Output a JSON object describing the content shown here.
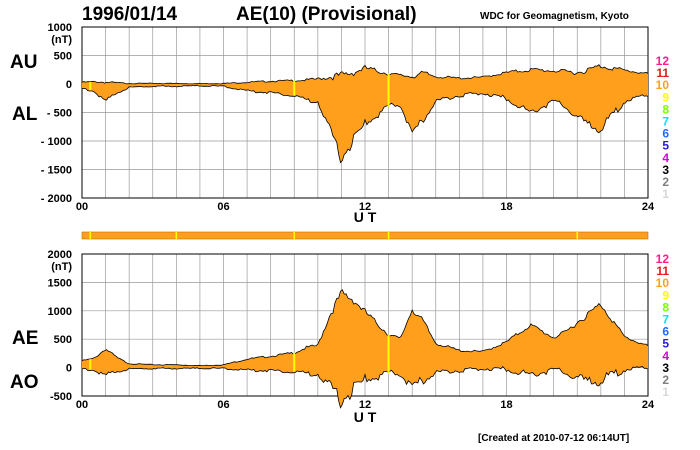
{
  "header": {
    "date": "1996/01/14",
    "title": "AE(10) (Provisional)",
    "organization": "WDC for Geomagnetism, Kyoto"
  },
  "footer": {
    "created": "[Created at 2010-07-12 06:14UT]"
  },
  "top_panel": {
    "labels": {
      "upper": "AU",
      "lower": "AL"
    },
    "unit": "(nT)",
    "y_ticks": [
      "1000",
      "500",
      "0",
      "- 500",
      "- 1000",
      "- 1500",
      "- 2000"
    ],
    "x_ticks": [
      "00",
      "06",
      "12",
      "18",
      "24"
    ],
    "x_label": "U T"
  },
  "bottom_panel": {
    "labels": {
      "upper": "AE",
      "lower": "AO"
    },
    "unit": "(nT)",
    "y_ticks": [
      "2000",
      "1500",
      "1000",
      "500",
      "0",
      "-500"
    ],
    "x_ticks": [
      "00",
      "06",
      "12",
      "18",
      "24"
    ],
    "x_label": "U T"
  },
  "station_levels": [
    "12",
    "11",
    "10",
    "9",
    "8",
    "7",
    "6",
    "5",
    "4",
    "3",
    "2",
    "1"
  ],
  "colors": {
    "fill": "#ff9f1c",
    "outline": "#000000",
    "grid": "#9a9a9a",
    "highlight": "#ffff00",
    "levels": [
      "#ff1e8c",
      "#e31a1c",
      "#ff9f1c",
      "#ffff00",
      "#7fff00",
      "#00e5ee",
      "#1e6bff",
      "#2b1bd6",
      "#d700d7",
      "#000000",
      "#7f7f7f",
      "#d8d8d8"
    ]
  },
  "chart_data": [
    {
      "type": "area",
      "panel": "AU/AL",
      "x_unit": "hours UT",
      "xlim": [
        0,
        24
      ],
      "ylim": [
        -2000,
        1000
      ],
      "ylabel": "(nT)",
      "xlabel": "U T",
      "grid": true,
      "series": [
        {
          "name": "AU",
          "x": [
            0,
            0.5,
            1,
            1.5,
            2,
            3,
            4,
            5,
            6,
            7,
            8,
            9,
            9.5,
            10,
            10.5,
            11,
            11.5,
            12,
            12.5,
            13,
            13.5,
            14,
            14.5,
            15,
            16,
            17,
            18,
            19,
            20,
            20.5,
            21,
            21.5,
            22,
            23,
            24
          ],
          "y": [
            30,
            40,
            30,
            20,
            10,
            10,
            10,
            5,
            10,
            30,
            50,
            60,
            70,
            90,
            120,
            150,
            200,
            280,
            230,
            180,
            150,
            140,
            190,
            130,
            100,
            120,
            200,
            250,
            230,
            220,
            200,
            250,
            320,
            240,
            180
          ]
        },
        {
          "name": "AL",
          "x": [
            0,
            0.5,
            1,
            1.5,
            2,
            3,
            4,
            5,
            6,
            7,
            8,
            9,
            9.5,
            10,
            10.5,
            11,
            11.5,
            12,
            12.5,
            13,
            13.5,
            14,
            14.5,
            15,
            16,
            17,
            18,
            19,
            20,
            20.5,
            21,
            21.5,
            22,
            23,
            24
          ],
          "y": [
            -80,
            -120,
            -300,
            -150,
            -60,
            -40,
            -40,
            -30,
            -40,
            -120,
            -150,
            -200,
            -280,
            -300,
            -800,
            -1300,
            -1000,
            -700,
            -550,
            -400,
            -350,
            -900,
            -600,
            -300,
            -200,
            -160,
            -250,
            -500,
            -300,
            -400,
            -600,
            -700,
            -800,
            -300,
            -200
          ]
        }
      ]
    },
    {
      "type": "area",
      "panel": "AE/AO",
      "x_unit": "hours UT",
      "xlim": [
        0,
        24
      ],
      "ylim": [
        -500,
        2000
      ],
      "ylabel": "(nT)",
      "xlabel": "U T",
      "grid": true,
      "series": [
        {
          "name": "AE",
          "x": [
            0,
            0.5,
            1,
            1.5,
            2,
            3,
            4,
            5,
            6,
            7,
            8,
            9,
            9.5,
            10,
            10.5,
            11,
            11.5,
            12,
            12.5,
            13,
            13.5,
            14,
            14.5,
            15,
            16,
            17,
            18,
            19,
            20,
            20.5,
            21,
            21.5,
            22,
            23,
            24
          ],
          "y": [
            120,
            160,
            330,
            170,
            70,
            50,
            50,
            35,
            50,
            150,
            200,
            260,
            350,
            390,
            920,
            1300,
            1200,
            980,
            780,
            580,
            500,
            1040,
            790,
            430,
            300,
            280,
            450,
            750,
            530,
            620,
            800,
            950,
            1120,
            540,
            380
          ]
        },
        {
          "name": "AO",
          "x": [
            0,
            0.5,
            1,
            1.5,
            2,
            3,
            4,
            5,
            6,
            7,
            8,
            9,
            9.5,
            10,
            10.5,
            11,
            11.5,
            12,
            12.5,
            13,
            13.5,
            14,
            14.5,
            15,
            16,
            17,
            18,
            19,
            20,
            20.5,
            21,
            21.5,
            22,
            23,
            24
          ],
          "y": [
            -25,
            -40,
            -135,
            -65,
            -25,
            -15,
            -15,
            -12,
            -15,
            -45,
            -50,
            -70,
            -105,
            -105,
            -340,
            -575,
            -400,
            -210,
            -160,
            -110,
            -100,
            -380,
            -205,
            -85,
            -50,
            -20,
            -25,
            -125,
            -35,
            -90,
            -200,
            -225,
            -240,
            -30,
            -10
          ]
        }
      ]
    }
  ]
}
